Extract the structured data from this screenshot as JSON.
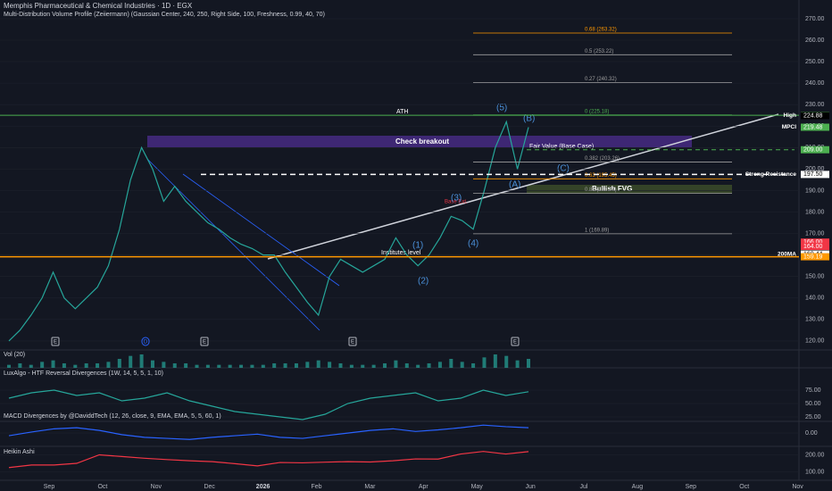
{
  "header": {
    "title": "Memphis Pharmaceutical & Chemical Industries · 1D · EGX",
    "subtitle": "Multi-Distribution Volume Profile (Zeiiermann) (Gaussian Center, 240, 250, Right Side, 100, Freshness, 0.99, 40, 70)"
  },
  "chart_data": [
    {
      "type": "line",
      "title": "MPCI",
      "color": "#26a69a",
      "values": [
        120,
        125,
        132,
        140,
        152,
        140,
        135,
        140,
        145,
        155,
        172,
        195,
        210,
        200,
        185,
        192,
        185,
        180,
        175,
        172,
        168,
        165,
        163,
        160,
        160,
        152,
        145,
        138,
        132,
        150,
        158,
        155,
        152,
        155,
        158,
        168,
        160,
        155,
        160,
        168,
        178,
        176,
        172,
        190,
        210,
        222,
        200,
        219.48
      ],
      "ylim": [
        115.8,
        278.7
      ],
      "yticks": [
        {
          "value": 120,
          "label": "120.00"
        },
        {
          "value": 130,
          "label": "130.00"
        },
        {
          "value": 140,
          "label": "140.00"
        },
        {
          "value": 150,
          "label": "150.00"
        },
        {
          "value": 160,
          "label": "160.00"
        },
        {
          "value": 170,
          "label": "170.00"
        },
        {
          "value": 180,
          "label": "180.00"
        },
        {
          "value": 190,
          "label": "190.00"
        },
        {
          "value": 200,
          "label": "200.00"
        },
        {
          "value": 210,
          "label": "210.00"
        },
        {
          "value": 220,
          "label": "220.00"
        },
        {
          "value": 230,
          "label": "230.00"
        },
        {
          "value": 240,
          "label": "240.00"
        },
        {
          "value": 250,
          "label": "250.00"
        },
        {
          "value": 260,
          "label": "260.00"
        },
        {
          "value": 270,
          "label": "270.00"
        }
      ],
      "price_tags": [
        {
          "label": "225.03",
          "value": 225.03,
          "color": "#4caf50"
        },
        {
          "name": "High",
          "label": "224.88",
          "value": 224.88,
          "color": "#000000"
        },
        {
          "name": "MPCI",
          "label": "219.48",
          "value": 219.48,
          "color": "#4caf50"
        },
        {
          "label": "209.00",
          "value": 209,
          "color": "#4caf50"
        },
        {
          "name": "Strong Resistance",
          "label": "197.50",
          "value": 197.5,
          "color": "#ffffff"
        },
        {
          "label": "166.00",
          "value": 166,
          "color": "#f23645"
        },
        {
          "label": "164.00",
          "value": 164,
          "color": "#f23645"
        },
        {
          "name": "200MA",
          "label": "160.44",
          "value": 160.44,
          "color": "#ffffff"
        },
        {
          "label": "159.19",
          "value": 159.19,
          "color": "#ff9800"
        }
      ],
      "fib_levels": [
        {
          "label": "0.68 (263.32)",
          "value": 263.32,
          "color": "#ff9800"
        },
        {
          "label": "0.5 (253.22)",
          "value": 253.22,
          "color": "#9e9e9e"
        },
        {
          "label": "0.27 (240.32)",
          "value": 240.32,
          "color": "#9e9e9e"
        },
        {
          "label": "0 (225.18)",
          "value": 225.18,
          "color": "#4caf50"
        },
        {
          "label": "0.382 (203.26)",
          "value": 203.26,
          "color": "#9e9e9e"
        },
        {
          "label": "0.63 (195.45)",
          "value": 195.45,
          "color": "#ff9800"
        },
        {
          "label": "0.89 (188.74)",
          "value": 188.74,
          "color": "#9e9e9e"
        },
        {
          "label": "1 (169.89)",
          "value": 169.89,
          "color": "#9e9e9e"
        }
      ],
      "annotations": {
        "ath": "ATH",
        "check": "Check breakout",
        "fair": "Fair Value (Base Case)",
        "fvg": "Bullish FVG",
        "inst": "Institutes level",
        "ext": "Base Ext.",
        "waves": [
          "(1)",
          "(2)",
          "(3)",
          "(4)",
          "(5)",
          "(A)",
          "(B)",
          "(C)"
        ]
      },
      "event_markers": [
        "E",
        "D",
        "E",
        "E",
        "E"
      ],
      "months": [
        "Sep",
        "Oct",
        "Nov",
        "Dec",
        "2026",
        "Feb",
        "Mar",
        "Apr",
        "May",
        "Jun",
        "Jul",
        "Aug",
        "Sep",
        "Oct",
        "Nov"
      ]
    },
    {
      "type": "bar",
      "title": "Vol (20)",
      "color": "#26a69a",
      "values": [
        2,
        3,
        2,
        4,
        5,
        3,
        2,
        3,
        3,
        4,
        6,
        8,
        9,
        5,
        4,
        3,
        3,
        2,
        2,
        2,
        2,
        2,
        2,
        2,
        3,
        3,
        3,
        4,
        5,
        4,
        3,
        2,
        2,
        2,
        3,
        5,
        3,
        2,
        3,
        4,
        6,
        4,
        3,
        7,
        9,
        8,
        5,
        6
      ],
      "ylim": [
        0,
        12
      ]
    },
    {
      "type": "line",
      "title": "LuxAlgo - HTF Reversal Divergences (1W, 14, 5, 5, 1, 10)",
      "color": "#26a69a",
      "values": [
        60,
        70,
        75,
        65,
        70,
        55,
        60,
        70,
        55,
        45,
        35,
        30,
        25,
        20,
        30,
        50,
        60,
        65,
        70,
        55,
        60,
        75,
        65,
        72
      ],
      "ylim": [
        16.7,
        116.7
      ],
      "yticks": [
        {
          "value": 75,
          "label": "75.00"
        },
        {
          "value": 50,
          "label": "50.00"
        },
        {
          "value": 25,
          "label": "25.00"
        }
      ]
    },
    {
      "type": "line",
      "title": "MACD Divergences by @DaviddTech (12, 26, close, 9, EMA, EMA, 5, 5, 60, 1)",
      "color": "#2962ff",
      "values": [
        -5,
        2,
        8,
        10,
        5,
        -3,
        -8,
        -10,
        -12,
        -8,
        -5,
        -2,
        -8,
        -10,
        -5,
        0,
        5,
        8,
        3,
        6,
        10,
        15,
        12,
        10
      ],
      "ylim": [
        -25,
        22
      ],
      "yticks": [
        {
          "value": 0,
          "label": "0.00"
        }
      ]
    },
    {
      "type": "line",
      "title": "Heikin Ashi",
      "color": "#f23645",
      "values": [
        125,
        140,
        140,
        150,
        200,
        190,
        180,
        172,
        165,
        160,
        148,
        135,
        155,
        153,
        157,
        160,
        158,
        165,
        176,
        175,
        205,
        220,
        205,
        219
      ],
      "ylim": [
        50,
        250
      ],
      "yticks": [
        {
          "value": 200,
          "label": "200.00"
        },
        {
          "value": 100,
          "label": "100.00"
        }
      ]
    }
  ]
}
